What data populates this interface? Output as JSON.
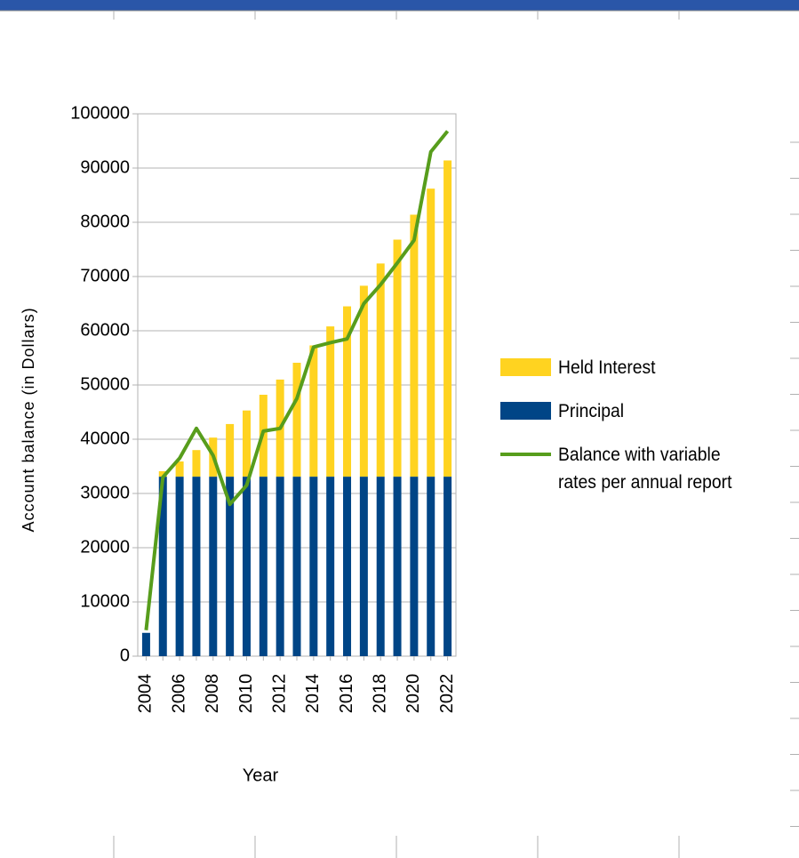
{
  "chart_data": {
    "type": "bar",
    "stacked": true,
    "categories": [
      "2004",
      null,
      "2006",
      null,
      "2008",
      null,
      "2010",
      null,
      "2012",
      null,
      "2014",
      null,
      "2016",
      null,
      "2018",
      null,
      "2020",
      null,
      "2022"
    ],
    "series": [
      {
        "name": "Held Interest",
        "type": "bar",
        "color": "#ffd320",
        "values": [
          0,
          1000,
          2800,
          4900,
          7200,
          9700,
          12200,
          15100,
          17900,
          21000,
          24200,
          27700,
          31400,
          35200,
          39300,
          43700,
          48300,
          53100,
          58300
        ]
      },
      {
        "name": "Principal",
        "type": "bar",
        "color": "#004586",
        "values": [
          4300,
          33100,
          33100,
          33100,
          33100,
          33100,
          33100,
          33100,
          33100,
          33100,
          33100,
          33100,
          33100,
          33100,
          33100,
          33100,
          33100,
          33100,
          33100
        ]
      },
      {
        "name": "Balance with variable rates per annual report",
        "type": "line",
        "color": "#579d1c",
        "values": [
          4800,
          33000,
          36500,
          42000,
          37000,
          28000,
          31500,
          41500,
          42000,
          47500,
          57000,
          57800,
          58500,
          65000,
          68500,
          72500,
          76700,
          93000,
          96800
        ]
      }
    ],
    "xlabel": "Year",
    "ylabel": "Account balance (in Dollars)",
    "ylim": [
      0,
      100000
    ],
    "yticks": [
      0,
      10000,
      20000,
      30000,
      40000,
      50000,
      60000,
      70000,
      80000,
      90000,
      100000
    ],
    "grid": true,
    "legend": "right"
  }
}
